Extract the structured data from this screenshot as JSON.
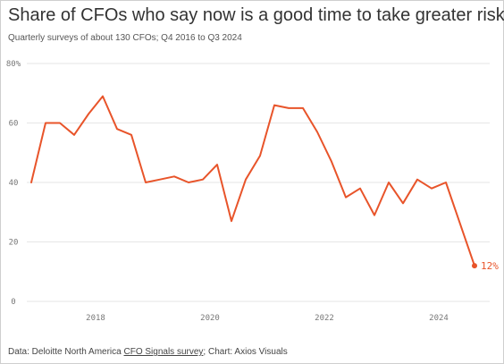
{
  "title": "Share of CFOs who say now is a good time to take greater risks",
  "subtitle": "Quarterly surveys of about 130 CFOs; Q4 2016 to Q3 2024",
  "source": {
    "prefix": "Data: Deloitte North America ",
    "link": "CFO Signals survey",
    "suffix": "; Chart: Axios Visuals"
  },
  "colors": {
    "line": "#e8542a",
    "grid": "#e6e6e6",
    "axis_text": "#777777"
  },
  "chart_data": {
    "type": "line",
    "title": "Share of CFOs who say now is a good time to take greater risks",
    "x_unit": "quarter",
    "x": [
      "Q4 2016",
      "Q1 2017",
      "Q2 2017",
      "Q3 2017",
      "Q4 2017",
      "Q1 2018",
      "Q2 2018",
      "Q3 2018",
      "Q4 2018",
      "Q1 2019",
      "Q2 2019",
      "Q3 2019",
      "Q4 2019",
      "Q1 2020",
      "Q2 2020",
      "Q3 2020",
      "Q4 2020",
      "Q1 2021",
      "Q2 2021",
      "Q3 2021",
      "Q4 2021",
      "Q1 2022",
      "Q2 2022",
      "Q3 2022",
      "Q4 2022",
      "Q1 2023",
      "Q2 2023",
      "Q3 2023",
      "Q4 2023",
      "Q1 2024",
      "Q2 2024",
      "Q3 2024"
    ],
    "series": [
      {
        "values": [
          40,
          60,
          60,
          56,
          63,
          69,
          58,
          56,
          40,
          41,
          42,
          40,
          41,
          46,
          27,
          41,
          49,
          66,
          65,
          65,
          57,
          47,
          35,
          38,
          29,
          40,
          33,
          41,
          38,
          40,
          26,
          12
        ]
      }
    ],
    "end_label": "12%",
    "ylim": [
      0,
      80
    ],
    "y_ticks": [
      "0",
      "20",
      "40",
      "60",
      "80%"
    ],
    "x_ticks": [
      "2018",
      "2020",
      "2022",
      "2024"
    ],
    "grid": true,
    "legend": "none"
  }
}
